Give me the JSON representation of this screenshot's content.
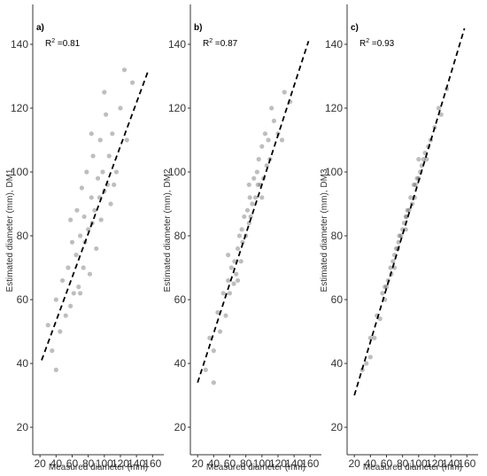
{
  "chart_data": [
    {
      "type": "scatter",
      "panel_label": "a)",
      "annotation": {
        "base": "R",
        "sup": "2",
        "text": " =0.81"
      },
      "xlabel": "Measured diameter (mm)",
      "ylabel": "Estimated diameter (mm), DM1",
      "color": "#444444",
      "xlim": [
        11,
        174
      ],
      "ylim": [
        11.4,
        152.5
      ],
      "xticks": [
        20,
        40,
        60,
        80,
        100,
        120,
        140,
        160
      ],
      "yticks": [
        20,
        40,
        60,
        80,
        100,
        120,
        140
      ],
      "x": [
        30,
        35,
        40,
        45,
        48,
        52,
        55,
        58,
        60,
        62,
        65,
        66,
        68,
        70,
        72,
        74,
        75,
        76,
        78,
        80,
        82,
        84,
        85,
        86,
        88,
        90,
        92,
        94,
        95,
        96,
        98,
        100,
        102,
        104,
        106,
        108,
        110,
        115,
        120,
        128,
        135,
        40,
        58,
        70,
        84,
        100,
        112,
        125
      ],
      "y": [
        52,
        44,
        60,
        50,
        66,
        55,
        70,
        58,
        78,
        62,
        74,
        88,
        64,
        80,
        95,
        70,
        86,
        78,
        100,
        82,
        68,
        92,
        84,
        105,
        88,
        76,
        98,
        92,
        110,
        85,
        100,
        94,
        118,
        96,
        105,
        90,
        112,
        100,
        120,
        110,
        128,
        38,
        85,
        62,
        112,
        125,
        96,
        132
      ],
      "fit_line": {
        "x": [
          22,
          155
        ],
        "y": [
          41,
          132
        ]
      }
    },
    {
      "type": "scatter",
      "panel_label": "b)",
      "annotation": {
        "base": "R",
        "sup": "2",
        "text": " =0.87"
      },
      "xlabel": "Measured diameter (mm)",
      "ylabel": "Estimated diameter (mm), DM2",
      "color": "#444444",
      "xlim": [
        11,
        174
      ],
      "ylim": [
        11.4,
        152.5
      ],
      "xticks": [
        20,
        40,
        60,
        80,
        100,
        120,
        140,
        160
      ],
      "yticks": [
        20,
        40,
        60,
        80,
        100,
        120,
        140
      ],
      "x": [
        30,
        35,
        40,
        45,
        48,
        52,
        55,
        58,
        60,
        62,
        65,
        66,
        68,
        70,
        72,
        74,
        75,
        76,
        78,
        80,
        82,
        84,
        85,
        86,
        88,
        90,
        92,
        94,
        95,
        96,
        98,
        100,
        102,
        104,
        106,
        108,
        110,
        115,
        120,
        128,
        135,
        40,
        58,
        70,
        84,
        100,
        112,
        125
      ],
      "y": [
        38,
        48,
        44,
        56,
        50,
        62,
        55,
        66,
        62,
        70,
        65,
        72,
        68,
        76,
        80,
        72,
        82,
        78,
        86,
        80,
        88,
        84,
        92,
        86,
        90,
        98,
        92,
        100,
        96,
        104,
        96,
        108,
        98,
        112,
        102,
        110,
        104,
        116,
        112,
        125,
        122,
        34,
        74,
        66,
        96,
        92,
        120,
        110
      ],
      "fit_line": {
        "x": [
          20,
          158
        ],
        "y": [
          34,
          141
        ]
      }
    },
    {
      "type": "scatter",
      "panel_label": "c)",
      "annotation": {
        "base": "R",
        "sup": "2",
        "text": " =0.93"
      },
      "xlabel": "Measured diameter (mm)",
      "ylabel": "Estimated diameter (mm), DM3",
      "color": "#444444",
      "xlim": [
        11,
        174
      ],
      "ylim": [
        11.4,
        152.5
      ],
      "xticks": [
        20,
        40,
        60,
        80,
        100,
        120,
        140,
        160
      ],
      "yticks": [
        20,
        40,
        60,
        80,
        100,
        120,
        140
      ],
      "x": [
        30,
        35,
        40,
        45,
        48,
        52,
        55,
        58,
        60,
        62,
        65,
        66,
        68,
        70,
        72,
        74,
        75,
        76,
        78,
        80,
        82,
        84,
        85,
        86,
        88,
        90,
        92,
        94,
        95,
        96,
        98,
        100,
        102,
        104,
        106,
        108,
        110,
        115,
        120,
        128,
        135,
        40,
        58,
        70,
        84,
        100,
        112,
        125
      ],
      "y": [
        38,
        40,
        48,
        48,
        55,
        54,
        62,
        60,
        64,
        66,
        70,
        68,
        72,
        74,
        76,
        76,
        78,
        80,
        80,
        82,
        84,
        86,
        86,
        88,
        88,
        92,
        90,
        96,
        92,
        96,
        98,
        98,
        100,
        102,
        104,
        106,
        104,
        110,
        114,
        118,
        126,
        42,
        64,
        70,
        82,
        104,
        108,
        120
      ],
      "fit_line": {
        "x": [
          20,
          157
        ],
        "y": [
          30,
          145
        ]
      }
    }
  ]
}
